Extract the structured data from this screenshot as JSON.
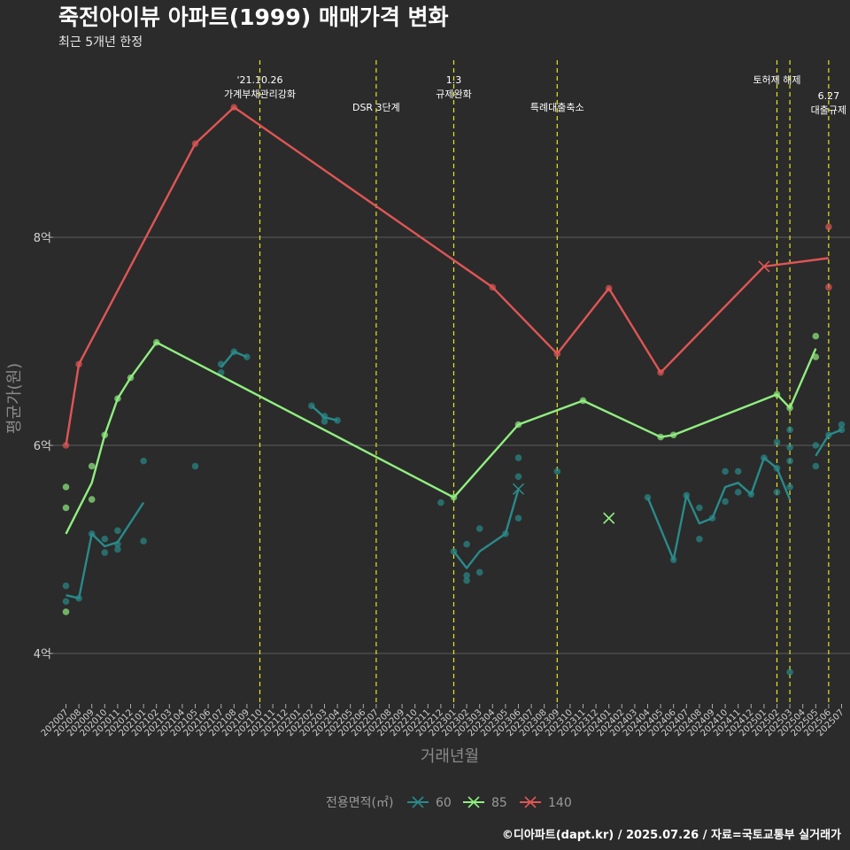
{
  "chart_data": {
    "type": "line",
    "title": "죽전아이뷰 아파트(1999) 매매가격 변화",
    "subtitle": "최근 5개년 한정",
    "xlabel": "거래년월",
    "ylabel": "평균가(원)",
    "ylim": [
      3.6,
      9.5
    ],
    "yticks": [
      {
        "v": 4,
        "label": "4억"
      },
      {
        "v": 6,
        "label": "6억"
      },
      {
        "v": 8,
        "label": "8억"
      }
    ],
    "categories": [
      "202007",
      "202008",
      "202009",
      "202010",
      "202011",
      "202012",
      "202101",
      "202102",
      "202103",
      "202104",
      "202105",
      "202106",
      "202107",
      "202108",
      "202109",
      "202110",
      "202111",
      "202112",
      "202201",
      "202202",
      "202203",
      "202204",
      "202205",
      "202206",
      "202207",
      "202208",
      "202209",
      "202210",
      "202211",
      "202212",
      "202301",
      "202302",
      "202303",
      "202304",
      "202305",
      "202306",
      "202307",
      "202308",
      "202309",
      "202310",
      "202311",
      "202312",
      "202401",
      "202402",
      "202403",
      "202404",
      "202405",
      "202406",
      "202407",
      "202408",
      "202409",
      "202410",
      "202411",
      "202412",
      "202501",
      "202502",
      "202503",
      "202504",
      "202505",
      "202506",
      "202507"
    ],
    "legend_title": "전용면적(㎡)",
    "legend_position": "bottom",
    "grid": true,
    "series": [
      {
        "name": "60",
        "color": "#2a8a8a",
        "lines": [
          [
            [
              "202007",
              4.56
            ],
            [
              "202008",
              4.53
            ],
            [
              "202009",
              5.15
            ],
            [
              "202010",
              5.03
            ],
            [
              "202011",
              5.07
            ],
            [
              "202101",
              5.45
            ]
          ],
          [
            [
              "202107",
              6.75
            ],
            [
              "202108",
              6.9
            ],
            [
              "202109",
              6.85
            ]
          ],
          [
            [
              "202202",
              6.38
            ],
            [
              "202203",
              6.27
            ],
            [
              "202204",
              6.24
            ]
          ],
          [
            [
              "202301",
              4.98
            ],
            [
              "202302",
              4.82
            ],
            [
              "202303",
              4.98
            ],
            [
              "202305",
              5.15
            ],
            [
              "202306",
              5.58
            ]
          ],
          [
            [
              "202404",
              5.5
            ],
            [
              "202406",
              4.9
            ],
            [
              "202407",
              5.52
            ],
            [
              "202408",
              5.25
            ],
            [
              "202409",
              5.3
            ],
            [
              "202410",
              5.6
            ],
            [
              "202411",
              5.64
            ],
            [
              "202412",
              5.53
            ],
            [
              "202501",
              5.88
            ],
            [
              "202502",
              5.78
            ],
            [
              "202503",
              5.48
            ]
          ],
          [
            [
              "202505",
              5.9
            ],
            [
              "202506",
              6.1
            ],
            [
              "202507",
              6.15
            ]
          ]
        ],
        "points": [
          [
            "202007",
            4.65
          ],
          [
            "202007",
            4.5
          ],
          [
            "202008",
            4.53
          ],
          [
            "202009",
            5.15
          ],
          [
            "202010",
            5.1
          ],
          [
            "202010",
            4.97
          ],
          [
            "202011",
            5.05
          ],
          [
            "202011",
            5.0
          ],
          [
            "202011",
            5.18
          ],
          [
            "202101",
            5.85
          ],
          [
            "202101",
            5.08
          ],
          [
            "202105",
            5.8
          ],
          [
            "202107",
            6.7
          ],
          [
            "202107",
            6.78
          ],
          [
            "202108",
            6.9
          ],
          [
            "202109",
            6.85
          ],
          [
            "202202",
            6.38
          ],
          [
            "202203",
            6.28
          ],
          [
            "202203",
            6.23
          ],
          [
            "202204",
            6.24
          ],
          [
            "202212",
            5.45
          ],
          [
            "202301",
            4.98
          ],
          [
            "202302",
            4.75
          ],
          [
            "202302",
            4.7
          ],
          [
            "202302",
            5.05
          ],
          [
            "202303",
            5.2
          ],
          [
            "202303",
            4.78
          ],
          [
            "202305",
            5.15
          ],
          [
            "202306",
            5.88
          ],
          [
            "202306",
            5.7
          ],
          [
            "202306",
            5.3
          ],
          [
            "202309",
            5.75
          ],
          [
            "202404",
            5.5
          ],
          [
            "202406",
            4.9
          ],
          [
            "202407",
            5.52
          ],
          [
            "202408",
            5.4
          ],
          [
            "202408",
            5.1
          ],
          [
            "202409",
            5.3
          ],
          [
            "202410",
            5.75
          ],
          [
            "202410",
            5.46
          ],
          [
            "202411",
            5.55
          ],
          [
            "202411",
            5.75
          ],
          [
            "202412",
            5.53
          ],
          [
            "202501",
            5.88
          ],
          [
            "202502",
            6.03
          ],
          [
            "202502",
            5.78
          ],
          [
            "202502",
            5.55
          ],
          [
            "202503",
            6.15
          ],
          [
            "202503",
            5.98
          ],
          [
            "202503",
            5.85
          ],
          [
            "202503",
            5.6
          ],
          [
            "202503",
            3.82
          ],
          [
            "202505",
            6.0
          ],
          [
            "202505",
            5.8
          ],
          [
            "202506",
            6.1
          ],
          [
            "202507",
            6.2
          ],
          [
            "202507",
            6.15
          ]
        ],
        "crosses": [
          [
            "202306",
            5.58
          ]
        ]
      },
      {
        "name": "85",
        "color": "#90ee80",
        "lines": [
          [
            [
              "202007",
              5.15
            ],
            [
              "202009",
              5.64
            ],
            [
              "202010",
              6.1
            ],
            [
              "202011",
              6.45
            ],
            [
              "202012",
              6.65
            ],
            [
              "202102",
              6.99
            ],
            [
              "202301",
              5.5
            ],
            [
              "202306",
              6.2
            ],
            [
              "202311",
              6.43
            ],
            [
              "202405",
              6.08
            ],
            [
              "202406",
              6.1
            ],
            [
              "202502",
              6.49
            ],
            [
              "202503",
              6.36
            ],
            [
              "202505",
              6.93
            ]
          ]
        ],
        "points": [
          [
            "202007",
            5.6
          ],
          [
            "202007",
            5.4
          ],
          [
            "202007",
            4.4
          ],
          [
            "202009",
            5.8
          ],
          [
            "202009",
            5.48
          ],
          [
            "202010",
            6.1
          ],
          [
            "202011",
            6.45
          ],
          [
            "202012",
            6.65
          ],
          [
            "202102",
            6.99
          ],
          [
            "202301",
            5.5
          ],
          [
            "202306",
            6.2
          ],
          [
            "202311",
            6.43
          ],
          [
            "202405",
            6.08
          ],
          [
            "202406",
            6.1
          ],
          [
            "202502",
            6.49
          ],
          [
            "202503",
            6.36
          ],
          [
            "202505",
            7.05
          ],
          [
            "202505",
            6.85
          ]
        ],
        "crosses": [
          [
            "202401",
            5.3
          ]
        ]
      },
      {
        "name": "140",
        "color": "#e05555",
        "lines": [
          [
            [
              "202007",
              6.0
            ],
            [
              "202008",
              6.78
            ],
            [
              "202105",
              8.9
            ],
            [
              "202108",
              9.25
            ],
            [
              "202304",
              7.52
            ],
            [
              "202309",
              6.88
            ],
            [
              "202401",
              7.51
            ],
            [
              "202405",
              6.7
            ],
            [
              "202501",
              7.72
            ],
            [
              "202506",
              7.8
            ]
          ]
        ],
        "points": [
          [
            "202007",
            6.0
          ],
          [
            "202008",
            6.78
          ],
          [
            "202105",
            8.9
          ],
          [
            "202108",
            9.25
          ],
          [
            "202304",
            7.52
          ],
          [
            "202309",
            6.88
          ],
          [
            "202401",
            7.51
          ],
          [
            "202405",
            6.7
          ],
          [
            "202506",
            8.1
          ],
          [
            "202506",
            7.52
          ]
        ],
        "crosses": [
          [
            "202501",
            7.72
          ]
        ]
      }
    ],
    "events": [
      {
        "x": "202110",
        "lines": [
          "'21.10.26",
          "가계부채관리강화"
        ],
        "level": 0
      },
      {
        "x": "202207",
        "lines": [
          "DSR 3단계"
        ],
        "level": 1
      },
      {
        "x": "202301",
        "lines": [
          "1.3",
          "규제완화"
        ],
        "level": 0
      },
      {
        "x": "202309",
        "lines": [
          "특례대출축소"
        ],
        "level": 1
      },
      {
        "x": "202502",
        "lines": [
          "토허제 해제"
        ],
        "level": 0
      },
      {
        "x": "202503",
        "lines": [],
        "level": 0
      },
      {
        "x": "202506",
        "lines": [
          "6.27",
          "대출규제"
        ],
        "level": 1
      }
    ]
  },
  "legend_labels": [
    "60",
    "85",
    "140"
  ],
  "caption": "©디아파트(dapt.kr) / 2025.07.26 / 자료=국토교통부 실거래가"
}
